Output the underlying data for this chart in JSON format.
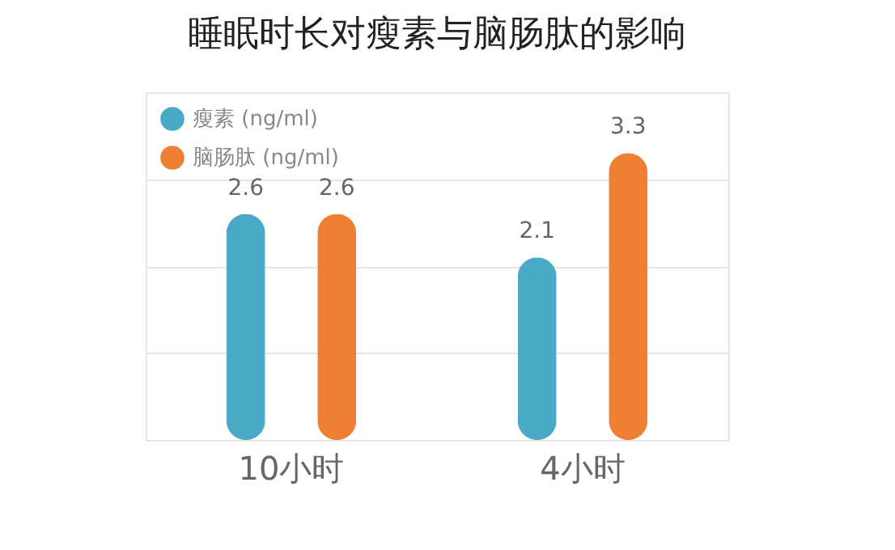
{
  "chart_data": {
    "type": "bar",
    "title": "睡眠时长对瘦素与脑肠肽的影响",
    "categories": [
      "10小时",
      "4小时"
    ],
    "series": [
      {
        "name": "瘦素 (ng/ml)",
        "color": "#4aa9c4",
        "values": [
          2.6,
          2.1
        ]
      },
      {
        "name": "脑肠肽 (ng/ml)",
        "color": "#ef7f33",
        "values": [
          2.6,
          3.3
        ]
      }
    ],
    "data_labels": true,
    "grid": true,
    "legend": "top left"
  }
}
